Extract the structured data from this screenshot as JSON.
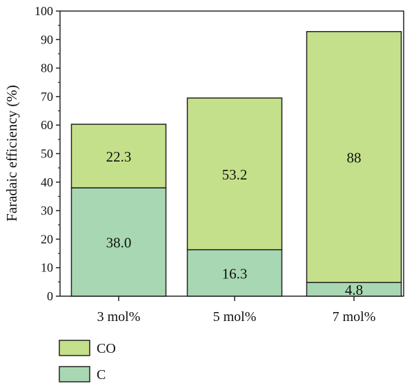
{
  "chart_data": {
    "type": "bar",
    "stacked": true,
    "categories": [
      "3 mol%",
      "5 mol%",
      "7 mol%"
    ],
    "series": [
      {
        "name": "C",
        "values": [
          38.0,
          16.3,
          4.8
        ],
        "labels": [
          "38.0",
          "16.3",
          "4.8"
        ],
        "color": "#a8d8b3"
      },
      {
        "name": "CO",
        "values": [
          22.3,
          53.2,
          88.0
        ],
        "labels": [
          "22.3",
          "53.2",
          "88"
        ],
        "color": "#c5e08a"
      }
    ],
    "title": "",
    "xlabel": "",
    "ylabel": "Faradaic efficiency (%)",
    "ylim": [
      0,
      100
    ],
    "yticks": [
      "0",
      "10",
      "20",
      "30",
      "40",
      "50",
      "60",
      "70",
      "80",
      "90",
      "100"
    ],
    "grid": false,
    "legend": {
      "placement": "bottom-left",
      "order": [
        "CO",
        "C"
      ]
    }
  }
}
